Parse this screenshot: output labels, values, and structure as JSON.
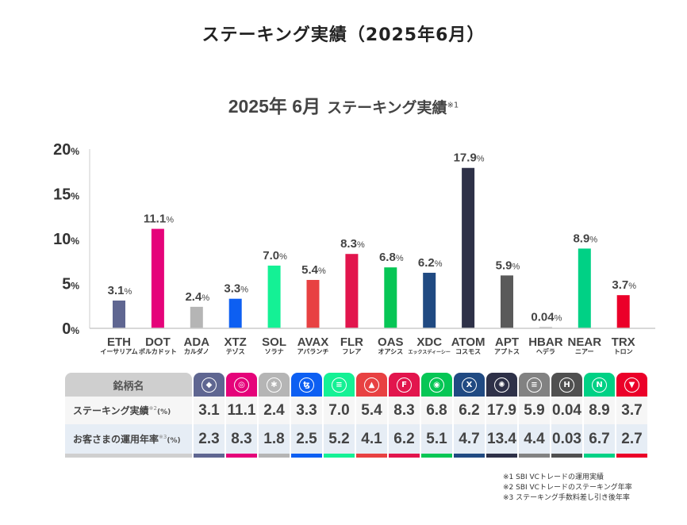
{
  "page_title": "ステーキング実績（2025年6月）",
  "chart_title": {
    "year_month": "2025年 6月",
    "subtitle": "ステーキング実績",
    "note_mark": "※1"
  },
  "chart_data": {
    "type": "bar",
    "title": "2025年 6月 ステーキング実績※1",
    "xlabel": "",
    "ylabel": "",
    "ylim": [
      0,
      20
    ],
    "yticks": [
      0,
      5,
      10,
      15,
      20
    ],
    "ytick_labels": [
      "0",
      "5",
      "10",
      "15",
      "20"
    ],
    "ytick_unit": "%",
    "value_unit": "%",
    "grid": false,
    "categories": [
      "ETH",
      "DOT",
      "ADA",
      "XTZ",
      "SOL",
      "AVAX",
      "FLR",
      "OAS",
      "XDC",
      "ATOM",
      "APT",
      "HBAR",
      "NEAR",
      "TRX"
    ],
    "category_sublabels": [
      "イーサリアム",
      "ポルカドット",
      "カルダノ",
      "テゾス",
      "ソラナ",
      "アバランチ",
      "フレア",
      "オアシス",
      "エックスディーシー",
      "コスモス",
      "アプトス",
      "ヘデラ",
      "ニアー",
      "トロン"
    ],
    "values": [
      3.1,
      11.1,
      2.4,
      3.3,
      7.0,
      5.4,
      8.3,
      6.8,
      6.2,
      17.9,
      5.9,
      0.04,
      8.9,
      3.7
    ],
    "value_labels": [
      "3.1",
      "11.1",
      "2.4",
      "3.3",
      "7.0",
      "5.4",
      "8.3",
      "6.8",
      "6.2",
      "17.9",
      "5.9",
      "0.04",
      "8.9",
      "3.7"
    ],
    "colors": [
      "#5f6691",
      "#e5037a",
      "#b5b5b5",
      "#0d5ff2",
      "#14f195",
      "#e84142",
      "#e2154d",
      "#06c655",
      "#204a82",
      "#2e3148",
      "#5a5a5a",
      "#aaaaaa",
      "#00d185",
      "#eb0029"
    ]
  },
  "table": {
    "header_label": "銘柄名",
    "coins": [
      {
        "symbol": "ETH",
        "icon": "ethereum-icon",
        "glyph": "◆",
        "color": "#5f6691"
      },
      {
        "symbol": "DOT",
        "icon": "polkadot-icon",
        "glyph": "◎",
        "color": "#e5037a"
      },
      {
        "symbol": "ADA",
        "icon": "cardano-icon",
        "glyph": "✱",
        "color": "#b5b5b5"
      },
      {
        "symbol": "XTZ",
        "icon": "tezos-icon",
        "glyph": "ꜩ",
        "color": "#0d5ff2"
      },
      {
        "symbol": "SOL",
        "icon": "solana-icon",
        "glyph": "≡",
        "color": "#14f195"
      },
      {
        "symbol": "AVAX",
        "icon": "avalanche-icon",
        "glyph": "▲",
        "color": "#e84142"
      },
      {
        "symbol": "FLR",
        "icon": "flare-icon",
        "glyph": "F",
        "color": "#e2154d"
      },
      {
        "symbol": "OAS",
        "icon": "oasys-icon",
        "glyph": "◉",
        "color": "#06c655"
      },
      {
        "symbol": "XDC",
        "icon": "xdc-icon",
        "glyph": "X",
        "color": "#204a82"
      },
      {
        "symbol": "ATOM",
        "icon": "cosmos-icon",
        "glyph": "✺",
        "color": "#2e3148"
      },
      {
        "symbol": "APT",
        "icon": "aptos-icon",
        "glyph": "≡",
        "color": "#828282"
      },
      {
        "symbol": "HBAR",
        "icon": "hedera-icon",
        "glyph": "H",
        "color": "#505050"
      },
      {
        "symbol": "NEAR",
        "icon": "near-icon",
        "glyph": "N",
        "color": "#00d185"
      },
      {
        "symbol": "TRX",
        "icon": "tron-icon",
        "glyph": "▼",
        "color": "#eb0029"
      }
    ],
    "rows": [
      {
        "label": "ステーキング実績",
        "note": "※2",
        "unit": "(%)",
        "values": [
          "3.1",
          "11.1",
          "2.4",
          "3.3",
          "7.0",
          "5.4",
          "8.3",
          "6.8",
          "6.2",
          "17.9",
          "5.9",
          "0.04",
          "8.9",
          "3.7"
        ]
      },
      {
        "label": "お客さまの運用年率",
        "note": "※3",
        "unit": "(%)",
        "values": [
          "2.3",
          "8.3",
          "1.8",
          "2.5",
          "5.2",
          "4.1",
          "6.2",
          "5.1",
          "4.7",
          "13.4",
          "4.4",
          "0.03",
          "6.7",
          "2.7"
        ]
      }
    ]
  },
  "footnotes": [
    "※1  SBI VCトレードの運用実績",
    "※2  SBI VCトレードのステーキング年率",
    "※3  ステーキング手数料差し引き後年率"
  ]
}
